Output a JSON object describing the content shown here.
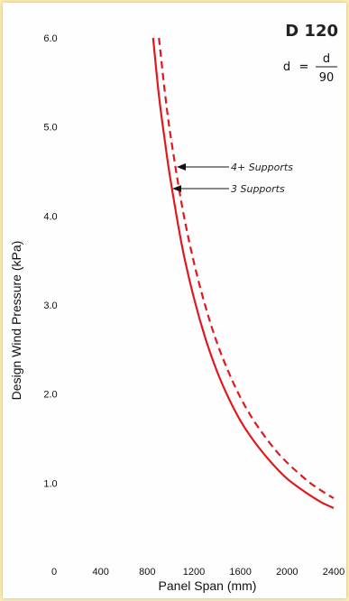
{
  "chart_data": {
    "type": "line",
    "code": "D 120",
    "formula": {
      "lhs": "d",
      "eq": "=",
      "numerator": "d",
      "denominator": "90"
    },
    "xlabel": "Panel Span (mm)",
    "ylabel": "Design Wind Pressure (kPa)",
    "xlim": [
      0,
      2400
    ],
    "ylim": [
      0,
      6.0
    ],
    "x_ticks": [
      "0",
      "400",
      "800",
      "1200",
      "1600",
      "2000",
      "2400"
    ],
    "y_ticks": [
      "1.0",
      "2.0",
      "3.0",
      "4.0",
      "5.0",
      "6.0"
    ],
    "grid": false,
    "series": [
      {
        "name": "3 Supports",
        "style": "solid",
        "color": "#e0191f",
        "x": [
          850,
          900,
          950,
          1000,
          1100,
          1200,
          1300,
          1400,
          1500,
          1600,
          1700,
          1800,
          1900,
          2000,
          2100,
          2200,
          2300,
          2400
        ],
        "y": [
          6.0,
          5.35,
          4.85,
          4.4,
          3.65,
          3.08,
          2.62,
          2.25,
          1.95,
          1.7,
          1.5,
          1.33,
          1.18,
          1.05,
          0.95,
          0.86,
          0.78,
          0.72
        ]
      },
      {
        "name": "4+ Supports",
        "style": "dashed",
        "color": "#e0191f",
        "x": [
          900,
          950,
          1000,
          1100,
          1200,
          1300,
          1400,
          1500,
          1600,
          1700,
          1800,
          1900,
          2000,
          2100,
          2200,
          2300,
          2400
        ],
        "y": [
          6.0,
          5.4,
          4.9,
          4.1,
          3.48,
          2.98,
          2.57,
          2.24,
          1.96,
          1.73,
          1.54,
          1.37,
          1.23,
          1.11,
          1.0,
          0.91,
          0.83
        ]
      }
    ],
    "annotations": [
      {
        "text": "4+ Supports",
        "series": "4+ Supports",
        "at_y": 4.6
      },
      {
        "text": "3 Supports",
        "series": "3 Supports",
        "at_y": 4.4
      }
    ]
  }
}
